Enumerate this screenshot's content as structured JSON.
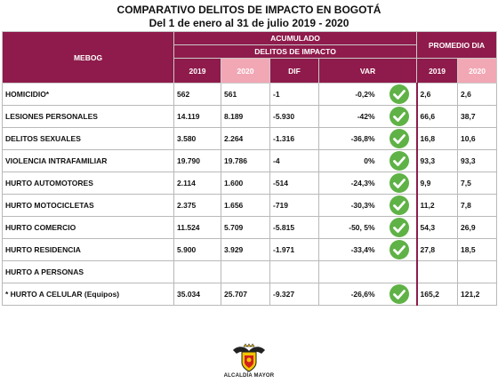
{
  "title_line1": "COMPARATIVO DELITOS DE IMPACTO EN BOGOTÁ",
  "title_line2": "Del 1 de enero al 31 de julio 2019 - 2020",
  "header": {
    "mebog": "MEBOG",
    "acumulado": "ACUMULADO",
    "delitos_impacto": "DELITOS DE IMPACTO",
    "promedio_dia": "PROMEDIO DIA",
    "col_2019": "2019",
    "col_2020": "2020",
    "col_dif": "DIF",
    "col_var": "VAR",
    "prom_2019": "2019",
    "prom_2020": "2020"
  },
  "rows": [
    {
      "label": "HOMICIDIO*",
      "v2019": "562",
      "v2020": "561",
      "dif": "-1",
      "var": "-0,2%",
      "check": true,
      "p2019": "2,6",
      "p2020": "2,6"
    },
    {
      "label": "LESIONES PERSONALES",
      "v2019": "14.119",
      "v2020": "8.189",
      "dif": "-5.930",
      "var": "-42%",
      "check": true,
      "p2019": "66,6",
      "p2020": "38,7"
    },
    {
      "label": "DELITOS SEXUALES",
      "v2019": "3.580",
      "v2020": "2.264",
      "dif": "-1.316",
      "var": "-36,8%",
      "check": true,
      "p2019": "16,8",
      "p2020": "10,6"
    },
    {
      "label": "VIOLENCIA INTRAFAMILIAR",
      "v2019": "19.790",
      "v2020": "19.786",
      "dif": "-4",
      "var": "0%",
      "check": true,
      "p2019": "93,3",
      "p2020": "93,3"
    },
    {
      "label": "HURTO AUTOMOTORES",
      "v2019": "2.114",
      "v2020": "1.600",
      "dif": "-514",
      "var": "-24,3%",
      "check": true,
      "p2019": "9,9",
      "p2020": "7,5"
    },
    {
      "label": "HURTO MOTOCICLETAS",
      "v2019": "2.375",
      "v2020": "1.656",
      "dif": "-719",
      "var": "-30,3%",
      "check": true,
      "p2019": "11,2",
      "p2020": "7,8"
    },
    {
      "label": "HURTO COMERCIO",
      "v2019": "11.524",
      "v2020": "5.709",
      "dif": "-5.815",
      "var": "-50, 5%",
      "check": true,
      "p2019": "54,3",
      "p2020": "26,9"
    },
    {
      "label": "HURTO RESIDENCIA",
      "v2019": "5.900",
      "v2020": "3.929",
      "dif": "-1.971",
      "var": "-33,4%",
      "check": true,
      "p2019": "27,8",
      "p2020": "18,5"
    },
    {
      "label": "HURTO A PERSONAS",
      "v2019": "",
      "v2020": "",
      "dif": "",
      "var": "",
      "check": false,
      "p2019": "",
      "p2020": ""
    },
    {
      "label": "*  HURTO A CELULAR (Equipos)",
      "v2019": "35.034",
      "v2020": "25.707",
      "dif": "-9.327",
      "var": "-26,6%",
      "check": true,
      "p2019": "165,2",
      "p2020": "121,2"
    }
  ],
  "footer": {
    "logo_icon": "bogota-coat-of-arms-icon",
    "logo_text": "ALCALDÍA MAYOR"
  },
  "colors": {
    "header_dark": "#8e1b4b",
    "header_light": "#f2a7b4",
    "check_green": "#5fb246"
  }
}
